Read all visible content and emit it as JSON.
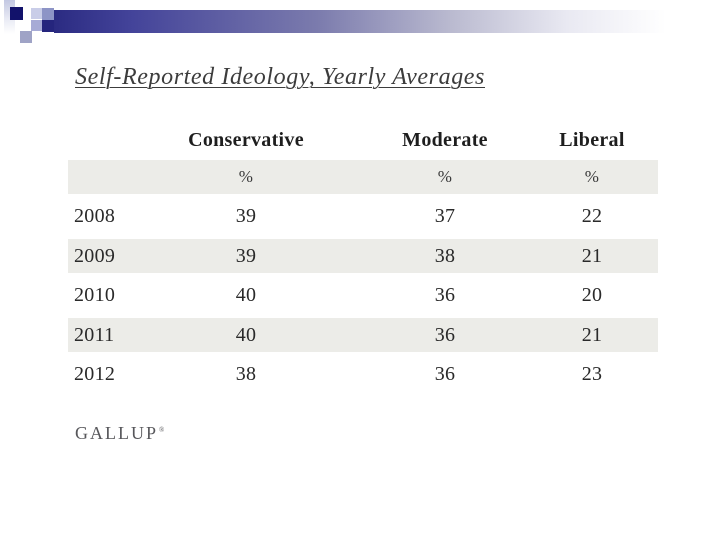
{
  "title": "Self-Reported Ideology, Yearly Averages",
  "logo": {
    "text": "GALLUP",
    "mark": "®"
  },
  "table": {
    "columns": [
      "Conservative",
      "Moderate",
      "Liberal"
    ],
    "unit_row": [
      "%",
      "%",
      "%"
    ],
    "rows": [
      {
        "year": "2008",
        "values": [
          "39",
          "37",
          "22"
        ]
      },
      {
        "year": "2009",
        "values": [
          "39",
          "38",
          "21"
        ]
      },
      {
        "year": "2010",
        "values": [
          "40",
          "36",
          "20"
        ]
      },
      {
        "year": "2011",
        "values": [
          "40",
          "36",
          "21"
        ]
      },
      {
        "year": "2012",
        "values": [
          "38",
          "36",
          "23"
        ]
      }
    ]
  },
  "colors": {
    "row_band": "#ECECE8",
    "accent_navy": "#2B2B82",
    "mosaic_dark_square": "#12126B",
    "title_text": "#3C3C3C",
    "logo_text": "#57575B"
  },
  "chart_data": {
    "type": "table",
    "title": "Self-Reported Ideology, Yearly Averages",
    "categories": [
      "2008",
      "2009",
      "2010",
      "2011",
      "2012"
    ],
    "series": [
      {
        "name": "Conservative",
        "values": [
          39,
          39,
          40,
          40,
          38
        ]
      },
      {
        "name": "Moderate",
        "values": [
          37,
          38,
          36,
          36,
          36
        ]
      },
      {
        "name": "Liberal",
        "values": [
          22,
          21,
          20,
          21,
          23
        ]
      }
    ],
    "unit": "%",
    "source": "GALLUP"
  }
}
